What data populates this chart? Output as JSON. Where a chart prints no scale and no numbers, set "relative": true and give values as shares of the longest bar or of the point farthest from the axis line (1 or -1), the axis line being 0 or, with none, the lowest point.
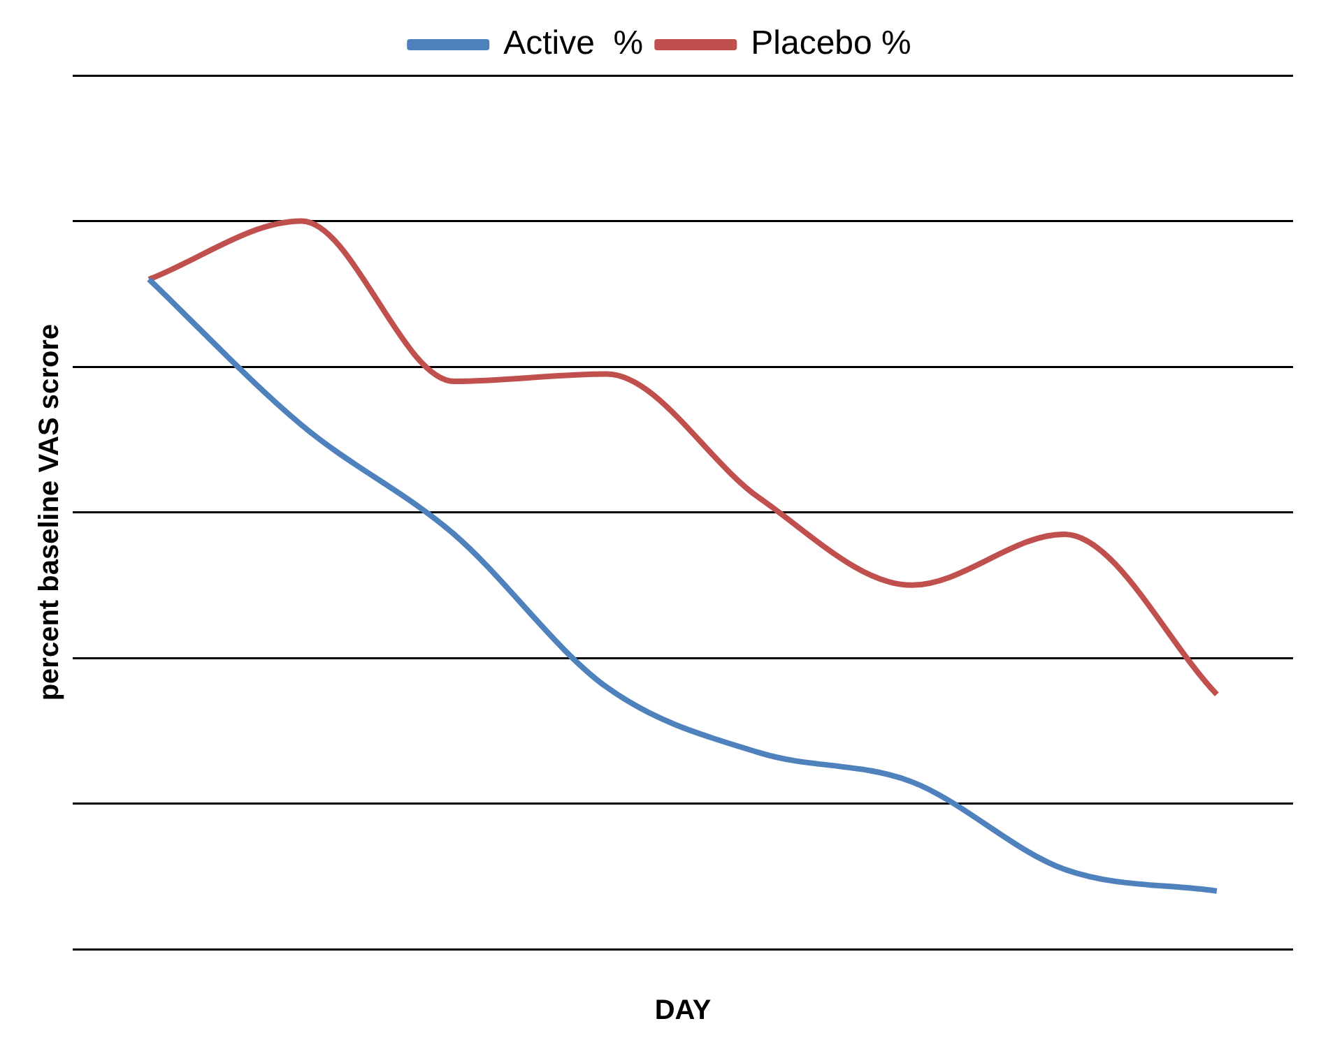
{
  "chart_data": {
    "type": "line",
    "relative": true,
    "xlabel": "DAY",
    "ylabel": "percent baseline VAS scrore",
    "categories": [
      null,
      null,
      null,
      null,
      null,
      null,
      null,
      null
    ],
    "series": [
      {
        "name": "Active  %",
        "color": "#4f81bd",
        "values": [
          0.92,
          0.72,
          0.57,
          0.36,
          0.27,
          0.23,
          0.11,
          0.08
        ]
      },
      {
        "name": "Placebo %",
        "color": "#c0504d",
        "values": [
          0.92,
          1,
          0.78,
          0.79,
          0.62,
          0.5,
          0.57,
          0.35
        ]
      }
    ],
    "grid": "y",
    "legend": "top",
    "marker": "none"
  }
}
